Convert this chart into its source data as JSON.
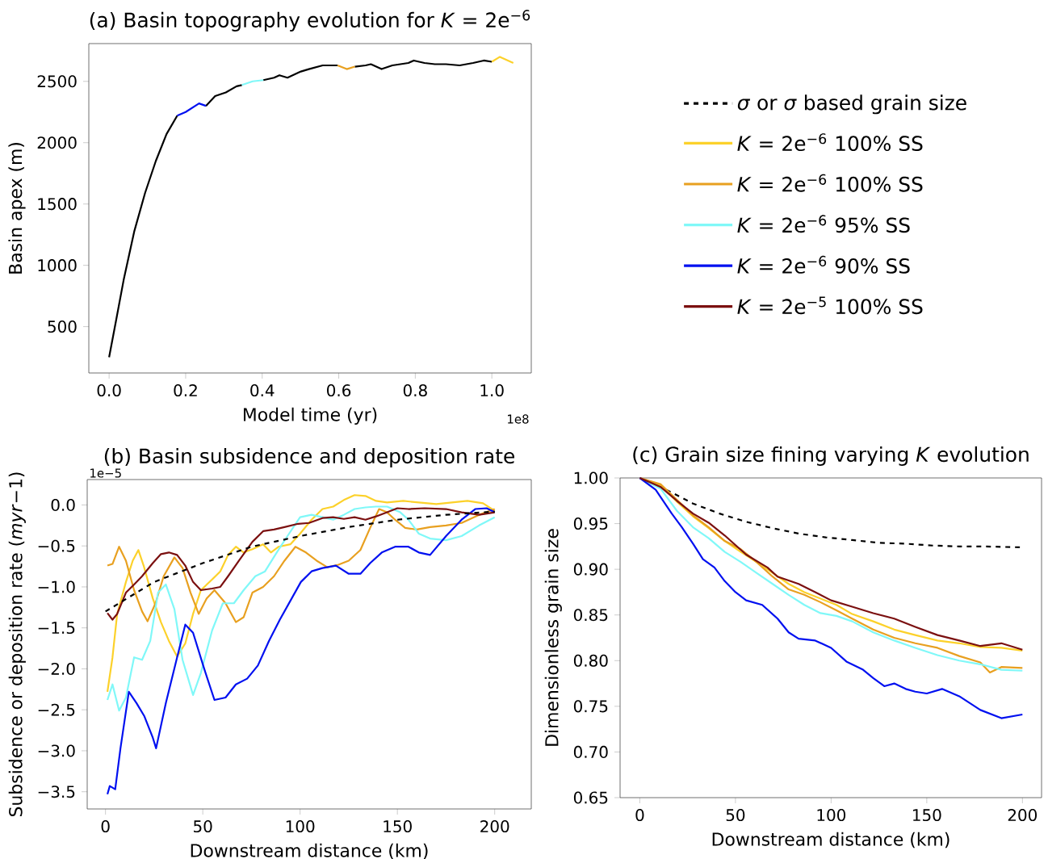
{
  "chart_data": [
    {
      "type": "line",
      "title": "(a) Basin topography evolution for *K* = 2e$^{−6}$",
      "xlabel": "Model time (yr)",
      "ylabel": "Basin apex (m)",
      "annotations": [
        "1e8"
      ],
      "xlim": [
        -0.053,
        1.103
      ],
      "ylim": [
        122,
        2808
      ],
      "xticks": [
        {
          "value": 0,
          "label": "0.0"
        },
        0.2,
        0.4,
        0.6,
        0.8,
        {
          "value": 1,
          "label": "1.0"
        }
      ],
      "yticks": [
        500,
        1000,
        1500,
        2000,
        2500
      ],
      "series": [
        {
          "color": "#000000",
          "x": [
            0,
            0.017,
            0.038,
            0.066,
            0.094,
            0.122,
            0.15,
            0.178,
            0.2,
            0.235,
            0.253,
            0.277,
            0.305,
            0.333,
            0.347,
            0.375,
            0.403,
            0.431,
            0.445,
            0.466,
            0.501,
            0.522,
            0.558,
            0.597,
            0.621,
            0.642,
            0.67,
            0.684,
            0.712,
            0.74,
            0.782,
            0.796,
            0.824,
            0.851,
            0.88,
            0.916,
            0.951,
            0.979,
            1.0
          ],
          "values": [
            250,
            530,
            880,
            1280,
            1590,
            1850,
            2070,
            2220,
            null,
            null,
            2300,
            2380,
            2410,
            2460,
            2470,
            null,
            2510,
            2530,
            2550,
            2530,
            2580,
            2600,
            2630,
            2630,
            null,
            2620,
            2630,
            2640,
            2600,
            2630,
            2650,
            2670,
            2650,
            2640,
            2640,
            2630,
            2650,
            2670,
            2660
          ]
        },
        {
          "color": "#0010f0",
          "x": [
            0.178,
            0.2,
            0.235,
            0.253
          ],
          "values": [
            2220,
            2250,
            2320,
            2300
          ]
        },
        {
          "color": "#80f8f8",
          "x": [
            0.347,
            0.375,
            0.403
          ],
          "values": [
            2470,
            2500,
            2510
          ]
        },
        {
          "color": "#e8a020",
          "x": [
            0.597,
            0.621,
            0.642
          ],
          "values": [
            2630,
            2600,
            2620
          ]
        },
        {
          "color": "#fcd12a",
          "x": [
            1.0,
            1.021,
            1.056
          ],
          "values": [
            2660,
            2700,
            2650
          ]
        }
      ]
    },
    {
      "type": "line",
      "title": "(b) Basin subsidence and deposition rate",
      "xlabel": "Downstream distance (km)",
      "ylabel": "Subsidence or deposition rate (*myr*−1)",
      "annotations": [
        "1e−5"
      ],
      "xlim": [
        -9.4,
        218.8
      ],
      "ylim": [
        -3.71,
        0.31
      ],
      "xticks": [
        0,
        50,
        100,
        150,
        200
      ],
      "yticks": [
        {
          "value": -3.5,
          "label": "−3.5"
        },
        {
          "value": -3,
          "label": "−3.0"
        },
        {
          "value": -2.5,
          "label": "−2.5"
        },
        {
          "value": -2,
          "label": "−2.0"
        },
        {
          "value": -1.5,
          "label": "−1.5"
        },
        {
          "value": -1,
          "label": "−1.0"
        },
        {
          "value": -0.5,
          "label": "−0.5"
        },
        {
          "value": 0,
          "label": "0.0"
        }
      ],
      "series": [
        {
          "color": "#fcd12a",
          "x": [
            1,
            3.6,
            6,
            10.5,
            14,
            16.9,
            19.6,
            24.3,
            28.5,
            32.6,
            36.8,
            41,
            45,
            49,
            54.8,
            59,
            63,
            67,
            71,
            75.5,
            81,
            85,
            89,
            95,
            100,
            105.9,
            111.5,
            117,
            122.5,
            128,
            133.6,
            139,
            144.7,
            153,
            161,
            170,
            178,
            186,
            194,
            200
          ],
          "values": [
            -2.28,
            -1.86,
            -1.33,
            -0.94,
            -0.68,
            -0.55,
            -0.74,
            -1.14,
            -1.43,
            -1.66,
            -1.85,
            -1.69,
            -1.33,
            -1.04,
            -0.91,
            -0.81,
            -0.61,
            -0.51,
            -0.58,
            -0.54,
            -0.48,
            -0.58,
            -0.51,
            -0.48,
            -0.35,
            -0.18,
            -0.05,
            -0.02,
            0.06,
            0.12,
            0.11,
            0.05,
            0.03,
            0.05,
            0.03,
            0.01,
            0.03,
            0.05,
            0.02,
            -0.07
          ]
        },
        {
          "color": "#e8a020",
          "x": [
            1,
            3.6,
            7,
            10.5,
            14.7,
            18.8,
            21.6,
            25.7,
            29.9,
            35.4,
            39.6,
            43.7,
            47.9,
            52,
            56,
            61.7,
            67,
            71,
            75.5,
            81,
            86.6,
            92,
            97.6,
            103,
            108.5,
            114,
            119.7,
            125,
            131,
            136,
            140.6,
            144.7,
            148.8,
            154,
            160,
            166.8,
            175,
            183,
            192,
            200
          ],
          "values": [
            -0.74,
            -0.72,
            -0.51,
            -0.68,
            -1.04,
            -1.3,
            -1.42,
            -1.2,
            -0.87,
            -0.64,
            -0.77,
            -1.07,
            -1.33,
            -1.14,
            -1.04,
            -1.2,
            -1.43,
            -1.37,
            -1.07,
            -1.0,
            -0.87,
            -0.68,
            -0.51,
            -0.58,
            -0.68,
            -0.76,
            -0.73,
            -0.68,
            -0.55,
            -0.28,
            -0.05,
            -0.09,
            -0.18,
            -0.28,
            -0.3,
            -0.27,
            -0.25,
            -0.22,
            -0.12,
            -0.05
          ]
        },
        {
          "color": "#80f8f8",
          "x": [
            1,
            3.6,
            7,
            10.5,
            14.7,
            18.8,
            23,
            27,
            31,
            35.4,
            39.6,
            45,
            49,
            54.8,
            60.3,
            66,
            71,
            77,
            82,
            88,
            93.5,
            100,
            105.9,
            111.5,
            117,
            122.5,
            128,
            133.6,
            139,
            144.7,
            151.5,
            155.7,
            161,
            166.8,
            175,
            183,
            192,
            200
          ],
          "values": [
            -2.38,
            -2.19,
            -2.51,
            -2.35,
            -1.86,
            -1.89,
            -1.66,
            -1.07,
            -0.97,
            -1.27,
            -1.89,
            -2.32,
            -2.05,
            -1.53,
            -1.2,
            -1.2,
            -1.04,
            -0.87,
            -0.81,
            -0.58,
            -0.38,
            -0.15,
            -0.12,
            -0.15,
            -0.18,
            -0.12,
            -0.05,
            -0.03,
            -0.02,
            -0.02,
            -0.09,
            -0.18,
            -0.35,
            -0.41,
            -0.43,
            -0.38,
            -0.25,
            -0.15
          ]
        },
        {
          "color": "#0010f0",
          "x": [
            1,
            2.2,
            5,
            7.7,
            12,
            16,
            20,
            24.3,
            26,
            31,
            36.8,
            41,
            45,
            50.6,
            56,
            61.7,
            67,
            72.8,
            78.3,
            84,
            89.6,
            95,
            100.4,
            105.9,
            111.5,
            118.4,
            125,
            131,
            136,
            142,
            148.8,
            155.7,
            161,
            166.8,
            175,
            183,
            190,
            195.9,
            200
          ],
          "values": [
            -3.53,
            -3.43,
            -3.47,
            -2.97,
            -2.28,
            -2.42,
            -2.58,
            -2.84,
            -2.97,
            -2.42,
            -1.86,
            -1.46,
            -1.56,
            -1.99,
            -2.38,
            -2.35,
            -2.19,
            -2.12,
            -1.96,
            -1.66,
            -1.4,
            -1.17,
            -0.94,
            -0.81,
            -0.77,
            -0.74,
            -0.84,
            -0.84,
            -0.71,
            -0.58,
            -0.51,
            -0.51,
            -0.58,
            -0.61,
            -0.38,
            -0.18,
            -0.05,
            -0.04,
            -0.09
          ]
        },
        {
          "color": "#7b1010",
          "x": [
            1,
            3.6,
            6,
            10.5,
            14.7,
            18.8,
            24.3,
            28.5,
            32.6,
            36.8,
            41,
            45,
            49,
            54.8,
            59,
            63,
            68.6,
            75.5,
            81,
            86.6,
            92,
            99,
            104.6,
            111.5,
            117,
            122.5,
            128,
            133.6,
            139,
            144.7,
            150,
            155.7,
            164,
            175,
            183,
            192,
            200
          ],
          "values": [
            -1.32,
            -1.4,
            -1.33,
            -1.07,
            -0.97,
            -0.87,
            -0.71,
            -0.6,
            -0.58,
            -0.61,
            -0.74,
            -0.94,
            -1.04,
            -1.02,
            -1.0,
            -0.87,
            -0.68,
            -0.45,
            -0.32,
            -0.3,
            -0.27,
            -0.23,
            -0.22,
            -0.16,
            -0.15,
            -0.17,
            -0.15,
            -0.18,
            -0.14,
            -0.09,
            -0.04,
            -0.05,
            -0.04,
            -0.05,
            -0.09,
            -0.12,
            -0.09
          ]
        },
        {
          "color": "#000000",
          "line_style": "dashed",
          "x": [
            0,
            25,
            50,
            75,
            100,
            125,
            150,
            175,
            200
          ],
          "values": [
            -1.3,
            -0.94,
            -0.71,
            -0.51,
            -0.38,
            -0.27,
            -0.18,
            -0.12,
            -0.08
          ]
        }
      ]
    },
    {
      "type": "line",
      "title": "(c) Grain size fining varying *K* evolution",
      "xlabel": "Downstream distance (km)",
      "ylabel": "Dimensionless grain size",
      "legend": "top",
      "xlim": [
        -10.3,
        210
      ],
      "ylim": [
        0.65,
        1.0
      ],
      "xticks": [
        0,
        50,
        100,
        150,
        200
      ],
      "yticks": [
        0.65,
        {
          "value": 0.7,
          "label": "0.70"
        },
        0.75,
        {
          "value": 0.8,
          "label": "0.80"
        },
        0.85,
        {
          "value": 0.9,
          "label": "0.90"
        },
        0.95,
        {
          "value": 1,
          "label": "1.00"
        }
      ],
      "series": [
        {
          "name": "*σ* or *σ*  based grain size",
          "color": "#000000",
          "line_style": "dashed",
          "x": [
            0,
            13.9,
            27.8,
            41.7,
            55.6,
            69.4,
            83.3,
            97.2,
            111,
            125,
            139,
            153,
            167,
            180.6,
            200
          ],
          "values": [
            1.0,
            0.987,
            0.972,
            0.961,
            0.952,
            0.945,
            0.939,
            0.935,
            0.932,
            0.929,
            0.928,
            0.926,
            0.925,
            0.925,
            0.924
          ]
        },
        {
          "name": "*K* = 2e$^{−6}$ 100% SS",
          "color": "#fcd12a",
          "x": [
            0,
            11,
            19.4,
            27.8,
            36,
            44.4,
            52.8,
            61,
            69.4,
            77.8,
            86,
            94.4,
            102.8,
            111,
            122,
            133,
            144,
            155.6,
            167,
            178,
            189,
            200
          ],
          "values": [
            1.0,
            0.992,
            0.974,
            0.958,
            0.945,
            0.931,
            0.919,
            0.908,
            0.896,
            0.884,
            0.875,
            0.868,
            0.861,
            0.851,
            0.843,
            0.834,
            0.828,
            0.822,
            0.819,
            0.815,
            0.814,
            0.811
          ]
        },
        {
          "name": "*K* = 2e$^{−6}$ 100% SS",
          "color": "#e8a020",
          "x": [
            0,
            11,
            19.4,
            27.8,
            36,
            44.4,
            52.8,
            61,
            69.4,
            77.8,
            86,
            94.4,
            102.8,
            111,
            122,
            133,
            144,
            155.6,
            167,
            178,
            183,
            189,
            200
          ],
          "values": [
            1.0,
            0.993,
            0.976,
            0.959,
            0.946,
            0.931,
            0.922,
            0.908,
            0.892,
            0.878,
            0.872,
            0.864,
            0.855,
            0.846,
            0.834,
            0.825,
            0.819,
            0.814,
            0.805,
            0.798,
            0.787,
            0.793,
            0.792
          ]
        },
        {
          "name": "*K* = 2e$^{−6}$ 95% SS",
          "color": "#80f8f8",
          "x": [
            0,
            11,
            19.4,
            27.8,
            36,
            44.4,
            52.8,
            61,
            69.4,
            77.8,
            86,
            94.4,
            102.8,
            111,
            122,
            133,
            144,
            155.6,
            167,
            178,
            189,
            200
          ],
          "values": [
            1.0,
            0.988,
            0.964,
            0.946,
            0.934,
            0.919,
            0.908,
            0.896,
            0.884,
            0.872,
            0.861,
            0.852,
            0.849,
            0.843,
            0.831,
            0.822,
            0.814,
            0.806,
            0.8,
            0.796,
            0.79,
            0.789
          ]
        },
        {
          "name": "*K* = 2e$^{−6}$ 90% SS",
          "color": "#0010f0",
          "x": [
            0,
            8.3,
            16.7,
            22,
            27.8,
            33,
            39,
            44.4,
            50,
            55.6,
            64,
            72,
            77.8,
            83,
            91.7,
            100,
            108,
            116.7,
            122,
            127.8,
            133,
            139,
            144,
            150,
            158,
            167,
            178,
            189,
            200
          ],
          "values": [
            1.0,
            0.987,
            0.961,
            0.946,
            0.928,
            0.911,
            0.902,
            0.887,
            0.875,
            0.866,
            0.861,
            0.846,
            0.831,
            0.824,
            0.822,
            0.814,
            0.799,
            0.79,
            0.781,
            0.772,
            0.775,
            0.769,
            0.766,
            0.764,
            0.769,
            0.761,
            0.746,
            0.737,
            0.741
          ]
        },
        {
          "name": "*K* = 2e$^{−5}$ 100% SS",
          "color": "#7b1010",
          "x": [
            0,
            11,
            19.4,
            27.8,
            36,
            44.4,
            55.6,
            66.7,
            72,
            83,
            91.7,
            100,
            111,
            122,
            133,
            144,
            155.6,
            167,
            178,
            189,
            200
          ],
          "values": [
            1.0,
            0.99,
            0.975,
            0.961,
            0.951,
            0.937,
            0.916,
            0.902,
            0.892,
            0.884,
            0.875,
            0.866,
            0.859,
            0.852,
            0.846,
            0.837,
            0.828,
            0.822,
            0.816,
            0.819,
            0.812
          ]
        }
      ]
    }
  ]
}
